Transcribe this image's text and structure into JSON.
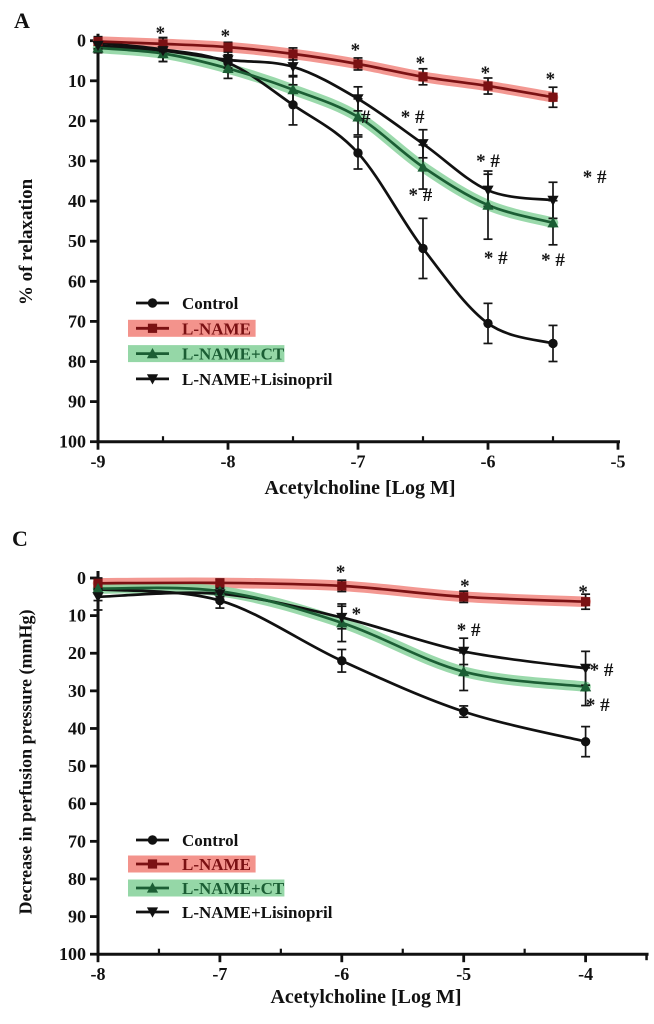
{
  "figure_background": "#ffffff",
  "chart_data": [
    {
      "type": "line",
      "panel_label": "A",
      "xlabel": "Acetylcholine [Log M]",
      "ylabel": "% of relaxation",
      "xlim": [
        -9,
        -5
      ],
      "ylim": [
        0,
        100
      ],
      "y_inverted": true,
      "grid": false,
      "legend_position": "inside-lower-left",
      "x_major_ticks": [
        -9,
        -8,
        -7,
        -6,
        -5
      ],
      "x_minor_ticks": [
        -8.5,
        -7.5,
        -6.5,
        -5.5
      ],
      "y_ticks": [
        0,
        10,
        20,
        30,
        40,
        50,
        60,
        70,
        80,
        90,
        100
      ],
      "x": [
        -9,
        -8.5,
        -8,
        -7.5,
        -7,
        -6.5,
        -6,
        -5.5
      ],
      "series": [
        {
          "name": "Control",
          "marker": "circle",
          "color": "#111111",
          "values": [
            0.5,
            2.2,
            5.5,
            16,
            28,
            51.8,
            70.5,
            75.5
          ],
          "errors": [
            1.5,
            3,
            2,
            5,
            4,
            7.5,
            5,
            4.5
          ]
        },
        {
          "name": "L-NAME",
          "marker": "square",
          "color": "#7b1113",
          "band_color": "#f28d86",
          "values": [
            0.2,
            0.8,
            1.6,
            3.3,
            5.8,
            9,
            11.3,
            14.1
          ],
          "errors": [
            0.8,
            1.5,
            1.2,
            1.5,
            1.5,
            2,
            2,
            2.5
          ]
        },
        {
          "name": "L-NAME+CT",
          "marker": "triangle-up",
          "color": "#1b5e34",
          "band_color": "#8fd5a2",
          "values": [
            1.8,
            3.2,
            6.9,
            12.2,
            19,
            31.5,
            41,
            45.4
          ],
          "errors": [
            1.2,
            2,
            2.5,
            3.5,
            4.5,
            5.5,
            8.5,
            5.5
          ]
        },
        {
          "name": "L-NAME+Lisinopril",
          "marker": "triangle-down",
          "color": "#111111",
          "values": [
            1.2,
            2.5,
            4.8,
            6.5,
            14.5,
            25.7,
            37.3,
            39.8
          ],
          "errors": [
            1,
            1.5,
            2,
            2.5,
            3,
            3.5,
            4,
            4.5
          ]
        }
      ],
      "annotations": [
        {
          "x": -8.52,
          "y": -2.7,
          "text": "*"
        },
        {
          "x": -8.02,
          "y": -1.9,
          "text": "*"
        },
        {
          "x": -7.02,
          "y": 1.6,
          "text": "*"
        },
        {
          "x": -6.52,
          "y": 4.8,
          "text": "*"
        },
        {
          "x": -6.02,
          "y": 7.3,
          "text": "*"
        },
        {
          "x": -5.52,
          "y": 8.8,
          "text": "*"
        },
        {
          "x": -6.94,
          "y": 18.3,
          "text": "#"
        },
        {
          "x": -6.58,
          "y": 18.3,
          "text": "* #"
        },
        {
          "x": -6.52,
          "y": 37.7,
          "text": "* #"
        },
        {
          "x": -6.0,
          "y": 29.3,
          "text": "* #"
        },
        {
          "x": -5.94,
          "y": 53.4,
          "text": "* #"
        },
        {
          "x": -5.18,
          "y": 33.2,
          "text": "* #"
        },
        {
          "x": -5.5,
          "y": 53.9,
          "text": "* #"
        }
      ]
    },
    {
      "type": "line",
      "panel_label": "C",
      "xlabel": "Acetylcholine [Log M]",
      "ylabel": "Decrease in perfusion pressure (mmHg)",
      "xlim": [
        -8,
        -4
      ],
      "ylim": [
        0,
        100
      ],
      "y_inverted": true,
      "grid": false,
      "legend_position": "inside-lower-left",
      "x_major_ticks": [
        -8,
        -7,
        -6,
        -5,
        -4
      ],
      "x_minor_ticks": [
        -7.5,
        -6.5,
        -5.5,
        -4.5
      ],
      "y_ticks": [
        0,
        10,
        20,
        30,
        40,
        50,
        60,
        70,
        80,
        90,
        100
      ],
      "x": [
        -8,
        -7,
        -6,
        -5,
        -4
      ],
      "series": [
        {
          "name": "Control",
          "marker": "circle",
          "color": "#111111",
          "values": [
            3,
            6,
            22,
            35.5,
            43.5
          ],
          "errors": [
            3,
            2,
            3,
            1.5,
            4
          ]
        },
        {
          "name": "L-NAME",
          "marker": "square",
          "color": "#7b1113",
          "band_color": "#f28d86",
          "values": [
            1.4,
            1.3,
            2.1,
            5,
            6.3
          ],
          "errors": [
            1.2,
            1,
            1.5,
            1.5,
            2
          ]
        },
        {
          "name": "L-NAME+CT",
          "marker": "triangle-up",
          "color": "#1b5e34",
          "band_color": "#8fd5a2",
          "values": [
            2.8,
            3.5,
            11.9,
            24.9,
            28.9
          ],
          "errors": [
            1.5,
            1.5,
            5,
            5,
            5
          ]
        },
        {
          "name": "L-NAME+Lisinopril",
          "marker": "triangle-down",
          "color": "#111111",
          "values": [
            5,
            4.2,
            10.5,
            19.5,
            24
          ],
          "errors": [
            3.5,
            1.5,
            3,
            3.5,
            4.5
          ]
        }
      ],
      "annotations": [
        {
          "x": -6.01,
          "y": -2.4,
          "text": "*"
        },
        {
          "x": -5.88,
          "y": 8.8,
          "text": "*"
        },
        {
          "x": -4.99,
          "y": 1.3,
          "text": "*"
        },
        {
          "x": -4.96,
          "y": 13.0,
          "text": "* #"
        },
        {
          "x": -4.02,
          "y": 2.9,
          "text": "*"
        },
        {
          "x": -3.87,
          "y": 23.7,
          "text": "* #"
        },
        {
          "x": -3.9,
          "y": 33.0,
          "text": "* #"
        }
      ]
    }
  ]
}
